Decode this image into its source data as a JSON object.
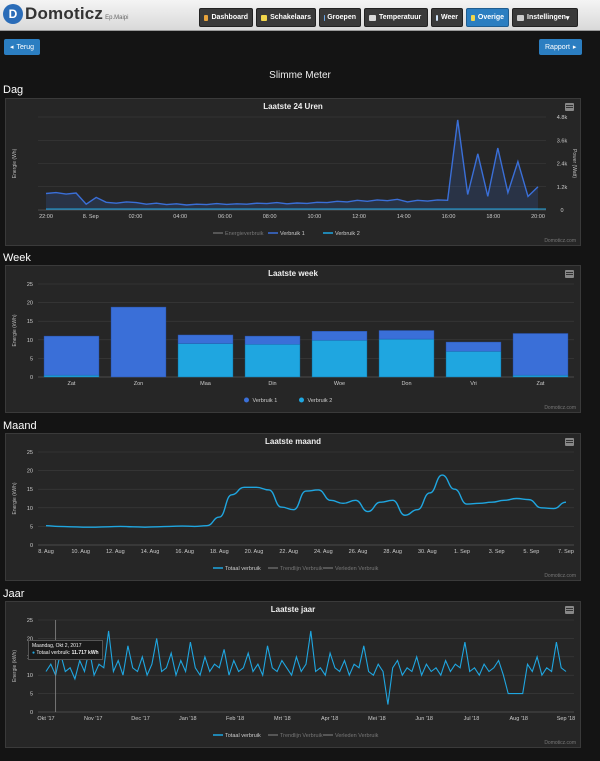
{
  "app": {
    "logo_text": "Domoticz",
    "logo_sub": "Ep.Maipi"
  },
  "nav": [
    {
      "label": "Dashboard",
      "icon": "home-icon",
      "color": "#e8a33b",
      "active": false
    },
    {
      "label": "Schakelaars",
      "icon": "bulb-icon",
      "color": "#f2d64b",
      "active": false
    },
    {
      "label": "Groepen",
      "icon": "groups-icon",
      "color": "#6aa6e8",
      "active": false
    },
    {
      "label": "Temperatuur",
      "icon": "thermometer-icon",
      "color": "#d9d9d9",
      "active": false
    },
    {
      "label": "Weer",
      "icon": "cloud-icon",
      "color": "#cfe2f7",
      "active": false
    },
    {
      "label": "Overige",
      "icon": "utility-icon",
      "color": "#f2d64b",
      "active": true
    },
    {
      "label": "Instellingen",
      "icon": "wrench-icon",
      "color": "#cccccc",
      "active": false
    }
  ],
  "buttons": {
    "back": "Terug",
    "report": "Rapport"
  },
  "page_title": "Slimme Meter",
  "credit": "Domoticz.com",
  "chart_data": [
    {
      "section": "Dag",
      "type": "line",
      "title": "Laatste 24 Uren",
      "ylabel": "Energie (Wh)",
      "y2label": "Power (Watt)",
      "yticks": [],
      "y2ticks": [
        "4.8k",
        "3.6k",
        "2.4k",
        "1.2k",
        "0"
      ],
      "y2lim": [
        0,
        4800
      ],
      "xticks": [
        "22:00",
        "8. Sep",
        "02:00",
        "04:00",
        "06:00",
        "08:00",
        "10:00",
        "12:00",
        "14:00",
        "16:00",
        "18:00",
        "20:00"
      ],
      "legend": [
        "Energieverbruik",
        "Verbruik 1",
        "Verbruik 2"
      ],
      "series": [
        {
          "name": "Verbruik 1",
          "values": [
            850,
            900,
            820,
            880,
            300,
            650,
            400,
            350,
            420,
            380,
            300,
            350,
            280,
            320,
            260,
            300,
            280,
            330,
            290,
            320,
            300,
            350,
            330,
            380,
            320,
            360,
            340,
            400,
            380,
            450,
            420,
            500,
            450,
            520,
            480,
            550,
            420,
            500,
            460,
            520,
            500,
            4650,
            800,
            2900,
            700,
            3200,
            900,
            2500,
            700,
            1200
          ]
        }
      ]
    },
    {
      "section": "Week",
      "type": "bar",
      "title": "Laatste week",
      "ylabel": "Energie (kWh)",
      "ylim": [
        0,
        25
      ],
      "yticks": [
        "25",
        "20",
        "15",
        "10",
        "5",
        "0"
      ],
      "categories": [
        "Zat",
        "Zon",
        "Maa",
        "Din",
        "Woe",
        "Don",
        "Vri",
        "Zat"
      ],
      "legend": [
        "Verbruik 1",
        "Verbruik 2"
      ],
      "series": [
        {
          "name": "Verbruik 1",
          "values": [
            10.5,
            18.8,
            2.3,
            2.2,
            2.4,
            2.3,
            2.5,
            11.2
          ]
        },
        {
          "name": "Verbruik 2",
          "values": [
            0.5,
            0,
            9,
            8.8,
            9.9,
            10.2,
            6.9,
            0.5
          ]
        }
      ]
    },
    {
      "section": "Maand",
      "type": "line",
      "title": "Laatste maand",
      "ylabel": "Energie (kWh)",
      "ylim": [
        0,
        25
      ],
      "yticks": [
        "25",
        "20",
        "15",
        "10",
        "5",
        "0"
      ],
      "xticks": [
        "8. Aug",
        "10. Aug",
        "12. Aug",
        "14. Aug",
        "16. Aug",
        "18. Aug",
        "20. Aug",
        "22. Aug",
        "24. Aug",
        "26. Aug",
        "28. Aug",
        "30. Aug",
        "1. Sep",
        "3. Sep",
        "5. Sep",
        "7. Sep"
      ],
      "legend": [
        "Totaal verbruik",
        "Trendlijn Verbruik",
        "Verleden Verbruik"
      ],
      "series": [
        {
          "name": "Totaal verbruik",
          "values": [
            5.2,
            5,
            4.9,
            4.8,
            4.8,
            4.9,
            5,
            4.9,
            4.8,
            4.9,
            5,
            5.1,
            5,
            5.2,
            7.5,
            13.5,
            15.5,
            15.5,
            14.8,
            10.2,
            9.5,
            14.5,
            14.8,
            12,
            11.2,
            12,
            9,
            11.5,
            12,
            8,
            9.5,
            14,
            18.8,
            15,
            11,
            11.2,
            11.5,
            12,
            12.5,
            12.2,
            10,
            9.8,
            11.5
          ]
        }
      ]
    },
    {
      "section": "Jaar",
      "type": "line",
      "title": "Laatste jaar",
      "ylabel": "Energie (kWh)",
      "ylim": [
        0,
        25
      ],
      "yticks": [
        "25",
        "20",
        "15",
        "10",
        "5",
        "0"
      ],
      "xticks": [
        "Okt '17",
        "Nov '17",
        "Dec '17",
        "Jan '18",
        "Feb '18",
        "Mrt '18",
        "Apr '18",
        "Mei '18",
        "Jun '18",
        "Jul '18",
        "Aug '18",
        "Sep '18"
      ],
      "legend": [
        "Totaal verbruik",
        "Trendlijn Verbruik",
        "Verleden Verbruik"
      ],
      "tooltip": {
        "date": "Maandag, Okt 2, 2017",
        "label": "Totaal verbruik:",
        "value": "11.717 kWh"
      },
      "series": [
        {
          "name": "Totaal verbruik",
          "values": [
            11,
            13,
            10,
            16,
            11,
            12,
            9,
            14,
            11,
            17,
            10,
            13,
            12,
            22,
            11,
            14,
            10,
            18,
            12,
            11,
            15,
            10,
            13,
            20,
            11,
            12,
            16,
            10,
            14,
            11,
            19,
            12,
            10,
            15,
            11,
            13,
            12,
            17,
            10,
            14,
            11,
            12,
            16,
            11,
            13,
            10,
            18,
            12,
            11,
            14,
            12,
            10,
            15,
            11,
            13,
            22,
            11,
            12,
            10,
            16,
            12,
            11,
            14,
            10,
            13,
            12,
            18,
            11,
            10,
            13,
            11,
            2,
            12,
            14,
            10,
            12,
            11,
            15,
            10,
            13,
            11,
            12,
            10,
            14,
            11,
            13,
            12,
            19,
            11,
            12,
            10,
            13,
            11,
            12,
            14,
            10,
            5,
            5,
            5,
            5,
            13,
            11,
            15,
            10,
            12,
            11,
            19,
            12,
            11
          ]
        }
      ]
    }
  ]
}
